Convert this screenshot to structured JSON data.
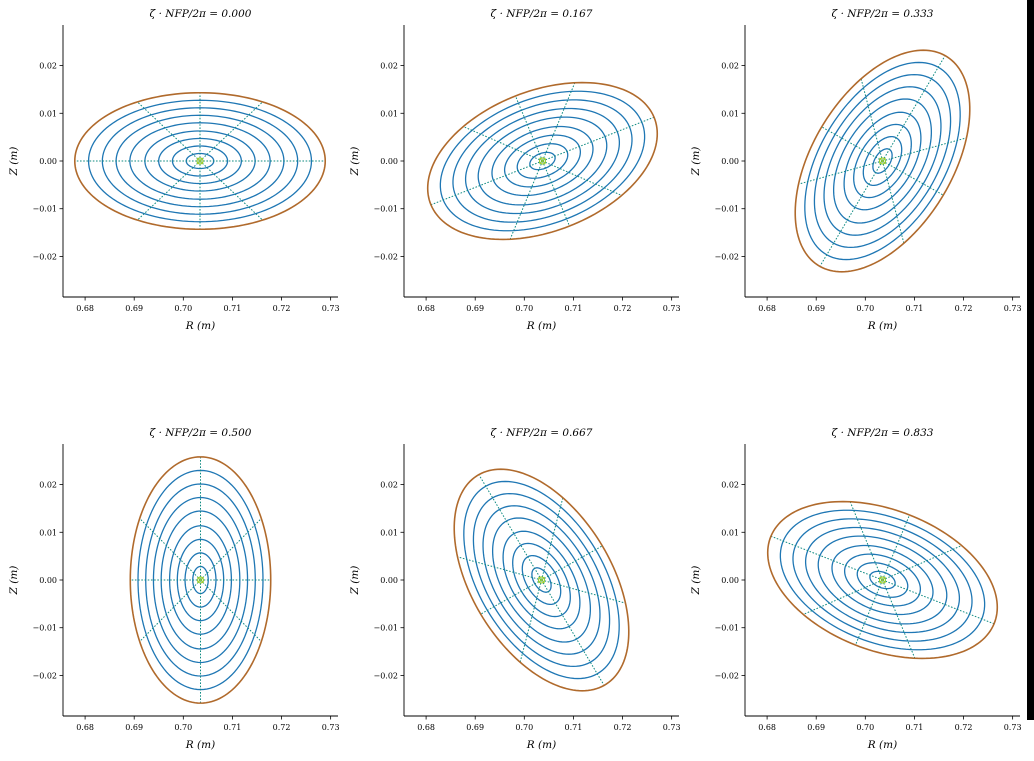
{
  "colors": {
    "flux_surface": "#1f77b4",
    "boundary": "#b06a2c",
    "theta_line": "#0f8b82",
    "axis_marker": "#9acd32",
    "right_strip": "#000000"
  },
  "chart_data": [
    {
      "type": "line",
      "title": "ζ · NFP/2π = 0.000",
      "zeta": 0.0,
      "xlabel": "R (m)",
      "ylabel": "Z (m)",
      "xlim": [
        0.6755,
        0.7315
      ],
      "ylim": [
        -0.0285,
        0.0285
      ],
      "xticks": [
        {
          "v": 0.68,
          "label": "0.68"
        },
        {
          "v": 0.69,
          "label": "0.69"
        },
        {
          "v": 0.7,
          "label": "0.70"
        },
        {
          "v": 0.71,
          "label": "0.71"
        },
        {
          "v": 0.72,
          "label": "0.72"
        },
        {
          "v": 0.73,
          "label": "0.73"
        }
      ],
      "yticks": [
        {
          "v": 0.02,
          "label": "0.02"
        },
        {
          "v": 0.01,
          "label": "0.01"
        },
        {
          "v": 0.0,
          "label": "0.00"
        },
        {
          "v": -0.01,
          "label": "−0.01"
        },
        {
          "v": -0.02,
          "label": "−0.02"
        }
      ],
      "magnetic_axis": {
        "R": 0.7034,
        "Z": 0.0
      },
      "boundary": {
        "semi_major": 0.0255,
        "semi_minor": 0.0143,
        "angle_deg": 0
      },
      "flux_surface_fractions": [
        0.11,
        0.22,
        0.33,
        0.44,
        0.56,
        0.67,
        0.78,
        0.89
      ],
      "theta_line_angles_deg": [
        0,
        60,
        90,
        120,
        180,
        240,
        270,
        300
      ]
    },
    {
      "type": "line",
      "title": "ζ · NFP/2π = 0.167",
      "zeta": 0.167,
      "xlabel": "R (m)",
      "ylabel": "Z (m)",
      "xlim": [
        0.6755,
        0.7315
      ],
      "ylim": [
        -0.0285,
        0.0285
      ],
      "xticks": [
        {
          "v": 0.68,
          "label": "0.68"
        },
        {
          "v": 0.69,
          "label": "0.69"
        },
        {
          "v": 0.7,
          "label": "0.70"
        },
        {
          "v": 0.71,
          "label": "0.71"
        },
        {
          "v": 0.72,
          "label": "0.72"
        },
        {
          "v": 0.73,
          "label": "0.73"
        }
      ],
      "yticks": [
        {
          "v": 0.02,
          "label": "0.02"
        },
        {
          "v": 0.01,
          "label": "0.01"
        },
        {
          "v": 0.0,
          "label": "0.00"
        },
        {
          "v": -0.01,
          "label": "−0.01"
        },
        {
          "v": -0.02,
          "label": "−0.02"
        }
      ],
      "magnetic_axis": {
        "R": 0.7037,
        "Z": 0.0
      },
      "boundary": {
        "semi_major": 0.0245,
        "semi_minor": 0.0147,
        "angle_deg": 22
      },
      "flux_surface_fractions": [
        0.11,
        0.22,
        0.33,
        0.44,
        0.56,
        0.67,
        0.78,
        0.89
      ],
      "theta_line_angles_deg": [
        0,
        60,
        90,
        120,
        180,
        240,
        270,
        300
      ]
    },
    {
      "type": "line",
      "title": "ζ · NFP/2π = 0.333",
      "zeta": 0.333,
      "xlabel": "R (m)",
      "ylabel": "Z (m)",
      "xlim": [
        0.6755,
        0.7315
      ],
      "ylim": [
        -0.0285,
        0.0285
      ],
      "xticks": [
        {
          "v": 0.68,
          "label": "0.68"
        },
        {
          "v": 0.69,
          "label": "0.69"
        },
        {
          "v": 0.7,
          "label": "0.70"
        },
        {
          "v": 0.71,
          "label": "0.71"
        },
        {
          "v": 0.72,
          "label": "0.72"
        },
        {
          "v": 0.73,
          "label": "0.73"
        }
      ],
      "yticks": [
        {
          "v": 0.02,
          "label": "0.02"
        },
        {
          "v": 0.01,
          "label": "0.01"
        },
        {
          "v": 0.0,
          "label": "0.00"
        },
        {
          "v": -0.01,
          "label": "−0.01"
        },
        {
          "v": -0.02,
          "label": "−0.02"
        }
      ],
      "magnetic_axis": {
        "R": 0.7035,
        "Z": 0.0
      },
      "boundary": {
        "semi_major": 0.0255,
        "semi_minor": 0.0143,
        "angle_deg": 60
      },
      "flux_surface_fractions": [
        0.11,
        0.22,
        0.33,
        0.44,
        0.56,
        0.67,
        0.78,
        0.89
      ],
      "theta_line_angles_deg": [
        0,
        60,
        90,
        120,
        180,
        240,
        270,
        300
      ]
    },
    {
      "type": "line",
      "title": "ζ · NFP/2π = 0.500",
      "zeta": 0.5,
      "xlabel": "R (m)",
      "ylabel": "Z (m)",
      "xlim": [
        0.6755,
        0.7315
      ],
      "ylim": [
        -0.0285,
        0.0285
      ],
      "xticks": [
        {
          "v": 0.68,
          "label": "0.68"
        },
        {
          "v": 0.69,
          "label": "0.69"
        },
        {
          "v": 0.7,
          "label": "0.70"
        },
        {
          "v": 0.71,
          "label": "0.71"
        },
        {
          "v": 0.72,
          "label": "0.72"
        },
        {
          "v": 0.73,
          "label": "0.73"
        }
      ],
      "yticks": [
        {
          "v": 0.02,
          "label": "0.02"
        },
        {
          "v": 0.01,
          "label": "0.01"
        },
        {
          "v": 0.0,
          "label": "0.00"
        },
        {
          "v": -0.01,
          "label": "−0.01"
        },
        {
          "v": -0.02,
          "label": "−0.02"
        }
      ],
      "magnetic_axis": {
        "R": 0.7035,
        "Z": 0.0
      },
      "boundary": {
        "semi_major": 0.0258,
        "semi_minor": 0.0143,
        "angle_deg": 90
      },
      "flux_surface_fractions": [
        0.11,
        0.22,
        0.33,
        0.44,
        0.56,
        0.67,
        0.78,
        0.89
      ],
      "theta_line_angles_deg": [
        0,
        60,
        90,
        120,
        180,
        240,
        270,
        300
      ]
    },
    {
      "type": "line",
      "title": "ζ · NFP/2π = 0.667",
      "zeta": 0.667,
      "xlabel": "R (m)",
      "ylabel": "Z (m)",
      "xlim": [
        0.6755,
        0.7315
      ],
      "ylim": [
        -0.0285,
        0.0285
      ],
      "xticks": [
        {
          "v": 0.68,
          "label": "0.68"
        },
        {
          "v": 0.69,
          "label": "0.69"
        },
        {
          "v": 0.7,
          "label": "0.70"
        },
        {
          "v": 0.71,
          "label": "0.71"
        },
        {
          "v": 0.72,
          "label": "0.72"
        },
        {
          "v": 0.73,
          "label": "0.73"
        }
      ],
      "yticks": [
        {
          "v": 0.02,
          "label": "0.02"
        },
        {
          "v": 0.01,
          "label": "0.01"
        },
        {
          "v": 0.0,
          "label": "0.00"
        },
        {
          "v": -0.01,
          "label": "−0.01"
        },
        {
          "v": -0.02,
          "label": "−0.02"
        }
      ],
      "magnetic_axis": {
        "R": 0.7035,
        "Z": 0.0
      },
      "boundary": {
        "semi_major": 0.0255,
        "semi_minor": 0.0143,
        "angle_deg": 120
      },
      "flux_surface_fractions": [
        0.11,
        0.22,
        0.33,
        0.44,
        0.56,
        0.67,
        0.78,
        0.89
      ],
      "theta_line_angles_deg": [
        0,
        60,
        90,
        120,
        180,
        240,
        270,
        300
      ]
    },
    {
      "type": "line",
      "title": "ζ · NFP/2π = 0.833",
      "zeta": 0.833,
      "xlabel": "R (m)",
      "ylabel": "Z (m)",
      "xlim": [
        0.6755,
        0.7315
      ],
      "ylim": [
        -0.0285,
        0.0285
      ],
      "xticks": [
        {
          "v": 0.68,
          "label": "0.68"
        },
        {
          "v": 0.69,
          "label": "0.69"
        },
        {
          "v": 0.7,
          "label": "0.70"
        },
        {
          "v": 0.71,
          "label": "0.71"
        },
        {
          "v": 0.72,
          "label": "0.72"
        },
        {
          "v": 0.73,
          "label": "0.73"
        }
      ],
      "yticks": [
        {
          "v": 0.02,
          "label": "0.02"
        },
        {
          "v": 0.01,
          "label": "0.01"
        },
        {
          "v": 0.0,
          "label": "0.00"
        },
        {
          "v": -0.01,
          "label": "−0.01"
        },
        {
          "v": -0.02,
          "label": "−0.02"
        }
      ],
      "magnetic_axis": {
        "R": 0.7035,
        "Z": 0.0
      },
      "boundary": {
        "semi_major": 0.0245,
        "semi_minor": 0.0147,
        "angle_deg": 158
      },
      "flux_surface_fractions": [
        0.11,
        0.22,
        0.33,
        0.44,
        0.56,
        0.67,
        0.78,
        0.89
      ],
      "theta_line_angles_deg": [
        0,
        60,
        90,
        120,
        180,
        240,
        270,
        300
      ]
    }
  ]
}
